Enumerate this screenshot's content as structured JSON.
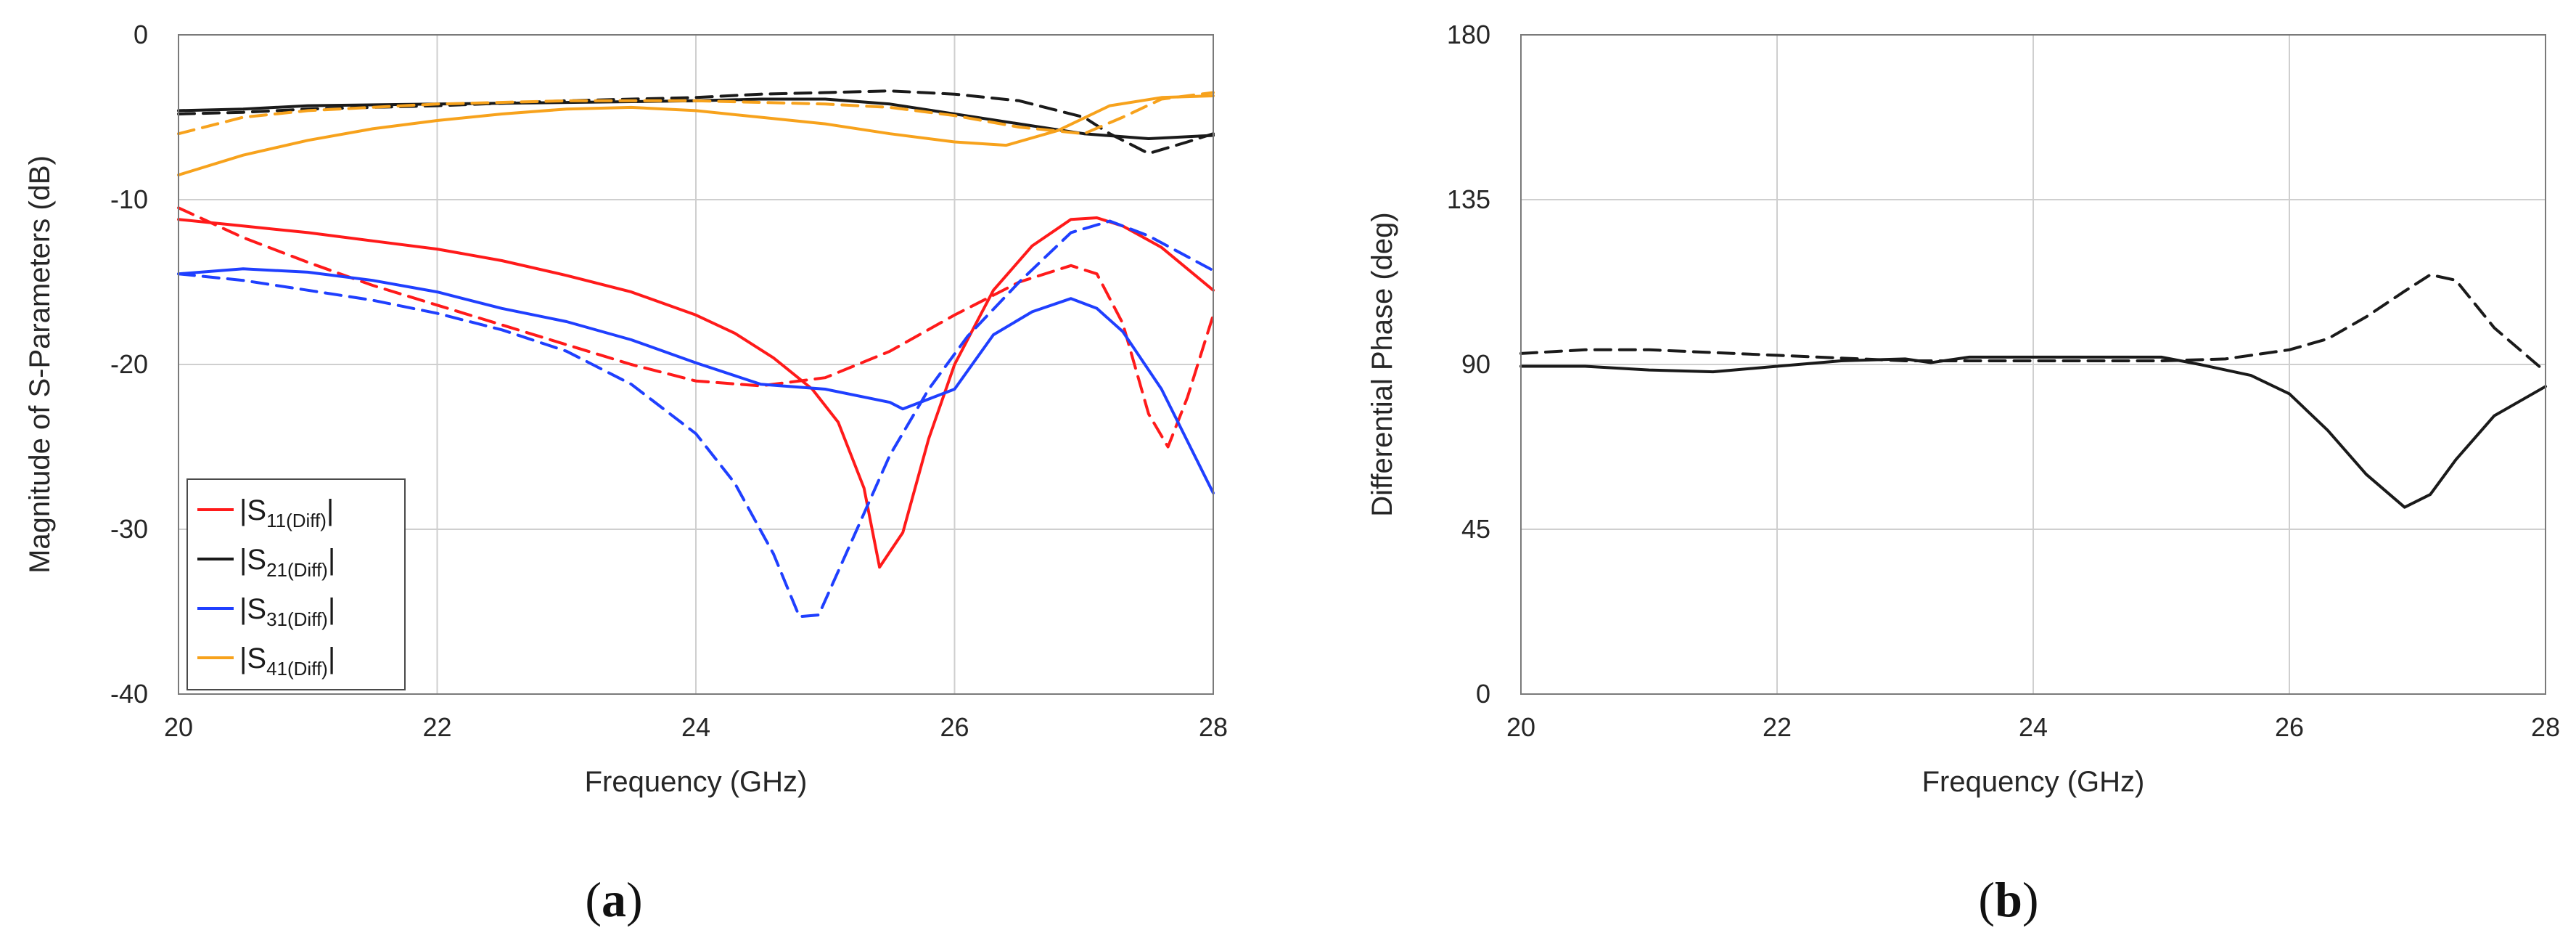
{
  "chart_data": [
    {
      "type": "line",
      "panel_label": "a",
      "xlabel": "Frequency (GHz)",
      "ylabel": "Magnitude of S-Parameters (dB)",
      "xlim": [
        20,
        28
      ],
      "ylim": [
        -40,
        0
      ],
      "xticks": [
        20,
        22,
        24,
        26,
        28
      ],
      "yticks": [
        -40,
        -30,
        -20,
        -10,
        0
      ],
      "grid": true,
      "legend_position": "bottom-left",
      "colors": {
        "red": "#ff1a1a",
        "black": "#1a1a1a",
        "blue": "#1f3fff",
        "orange": "#f7a21c"
      },
      "legend": [
        {
          "main": "S",
          "sub": "11(Diff)",
          "color": "#ff1a1a"
        },
        {
          "main": "S",
          "sub": "21(Diff)",
          "color": "#1a1a1a"
        },
        {
          "main": "S",
          "sub": "31(Diff)",
          "color": "#1f3fff"
        },
        {
          "main": "S",
          "sub": "41(Diff)",
          "color": "#f7a21c"
        }
      ],
      "series": [
        {
          "name": "|S11(Diff)| solid",
          "color": "#ff1a1a",
          "dash": false,
          "x": [
            20,
            20.5,
            21,
            21.5,
            22,
            22.5,
            23,
            23.5,
            24,
            24.3,
            24.6,
            24.9,
            25.1,
            25.3,
            25.42,
            25.6,
            25.8,
            26.0,
            26.3,
            26.6,
            26.9,
            27.1,
            27.3,
            27.6,
            28
          ],
          "y": [
            -11.2,
            -11.6,
            -12.0,
            -12.5,
            -13.0,
            -13.7,
            -14.6,
            -15.6,
            -17.0,
            -18.1,
            -19.6,
            -21.5,
            -23.5,
            -27.5,
            -32.3,
            -30.2,
            -24.5,
            -20.0,
            -15.5,
            -12.8,
            -11.2,
            -11.1,
            -11.6,
            -12.9,
            -15.5
          ]
        },
        {
          "name": "|S11(Diff)| dashed",
          "color": "#ff1a1a",
          "dash": true,
          "x": [
            20,
            20.5,
            21,
            21.5,
            22,
            22.5,
            23,
            23.5,
            24,
            24.5,
            25,
            25.5,
            26,
            26.5,
            26.9,
            27.1,
            27.3,
            27.5,
            27.65,
            27.8,
            28
          ],
          "y": [
            -10.5,
            -12.3,
            -13.8,
            -15.2,
            -16.4,
            -17.6,
            -18.8,
            -20.0,
            -21.0,
            -21.3,
            -20.8,
            -19.2,
            -17.0,
            -15.0,
            -14.0,
            -14.5,
            -17.5,
            -23.0,
            -25.0,
            -22.0,
            -17.0
          ]
        },
        {
          "name": "|S21(Diff)| solid",
          "color": "#1a1a1a",
          "dash": false,
          "x": [
            20,
            20.5,
            21,
            22,
            23,
            24,
            24.5,
            25,
            25.5,
            26,
            26.5,
            27,
            27.5,
            28
          ],
          "y": [
            -4.6,
            -4.5,
            -4.3,
            -4.2,
            -4.1,
            -4.0,
            -3.9,
            -3.9,
            -4.2,
            -4.8,
            -5.4,
            -6.0,
            -6.3,
            -6.1
          ]
        },
        {
          "name": "|S21(Diff)| dashed",
          "color": "#1a1a1a",
          "dash": true,
          "x": [
            20,
            20.5,
            21,
            22,
            23,
            24,
            24.5,
            25,
            25.5,
            26,
            26.5,
            27,
            27.2,
            27.5,
            27.8,
            28
          ],
          "y": [
            -4.8,
            -4.7,
            -4.5,
            -4.3,
            -4.0,
            -3.8,
            -3.6,
            -3.5,
            -3.4,
            -3.6,
            -4.0,
            -5.0,
            -6.0,
            -7.2,
            -6.5,
            -6.0
          ]
        },
        {
          "name": "|S31(Diff)| solid",
          "color": "#1f3fff",
          "dash": false,
          "x": [
            20,
            20.5,
            21,
            21.5,
            22,
            22.5,
            23,
            23.5,
            24,
            24.5,
            25,
            25.5,
            25.6,
            26.0,
            26.3,
            26.6,
            26.9,
            27.1,
            27.3,
            27.6,
            28
          ],
          "y": [
            -14.5,
            -14.2,
            -14.4,
            -14.9,
            -15.6,
            -16.6,
            -17.4,
            -18.5,
            -19.9,
            -21.2,
            -21.5,
            -22.3,
            -22.7,
            -21.5,
            -18.2,
            -16.8,
            -16.0,
            -16.6,
            -18.0,
            -21.5,
            -27.8
          ]
        },
        {
          "name": "|S31(Diff)| dashed",
          "color": "#1f3fff",
          "dash": true,
          "x": [
            20,
            20.5,
            21,
            21.5,
            22,
            22.5,
            23,
            23.5,
            24,
            24.3,
            24.6,
            24.8,
            24.95,
            25.2,
            25.5,
            25.8,
            26.1,
            26.5,
            26.9,
            27.2,
            27.5,
            28
          ],
          "y": [
            -14.5,
            -14.9,
            -15.5,
            -16.1,
            -16.9,
            -17.9,
            -19.2,
            -21.2,
            -24.2,
            -27.2,
            -31.5,
            -35.3,
            -35.2,
            -30.8,
            -25.5,
            -21.5,
            -18.3,
            -15.0,
            -12.0,
            -11.3,
            -12.2,
            -14.3
          ]
        },
        {
          "name": "|S41(Diff)| solid",
          "color": "#f7a21c",
          "dash": false,
          "x": [
            20,
            20.5,
            21,
            21.5,
            22,
            22.5,
            23,
            23.5,
            24,
            24.5,
            25,
            25.5,
            26,
            26.4,
            26.8,
            27.2,
            27.6,
            28
          ],
          "y": [
            -8.5,
            -7.3,
            -6.4,
            -5.7,
            -5.2,
            -4.8,
            -4.5,
            -4.4,
            -4.6,
            -5.0,
            -5.4,
            -6.0,
            -6.5,
            -6.7,
            -5.8,
            -4.3,
            -3.8,
            -3.7
          ]
        },
        {
          "name": "|S41(Diff)| dashed",
          "color": "#f7a21c",
          "dash": true,
          "x": [
            20,
            20.5,
            21,
            22,
            23,
            24,
            25,
            25.5,
            26,
            26.5,
            27,
            27.3,
            27.6,
            28
          ],
          "y": [
            -6.0,
            -5.0,
            -4.6,
            -4.2,
            -4.0,
            -4.0,
            -4.2,
            -4.4,
            -4.9,
            -5.6,
            -6.0,
            -5.0,
            -3.9,
            -3.5
          ]
        }
      ]
    },
    {
      "type": "line",
      "panel_label": "b",
      "xlabel": "Frequency (GHz)",
      "ylabel": "Differential Phase (deg)",
      "xlim": [
        20,
        28
      ],
      "ylim": [
        0,
        180
      ],
      "xticks": [
        20,
        22,
        24,
        26,
        28
      ],
      "yticks": [
        0,
        45,
        90,
        135,
        180
      ],
      "grid": true,
      "series": [
        {
          "name": "phase solid",
          "color": "#1a1a1a",
          "dash": false,
          "x": [
            20,
            20.5,
            21,
            21.5,
            22,
            22.5,
            23,
            23.2,
            23.5,
            24,
            24.5,
            25,
            25.3,
            25.7,
            26.0,
            26.3,
            26.6,
            26.9,
            27.1,
            27.3,
            27.6,
            28
          ],
          "y": [
            89.5,
            89.5,
            88.5,
            88.0,
            89.5,
            91.0,
            91.5,
            90.5,
            92.0,
            92.0,
            92.0,
            92.0,
            90.0,
            87.0,
            82.0,
            72.0,
            60.0,
            51.0,
            54.5,
            64.0,
            76.0,
            84.0
          ]
        },
        {
          "name": "phase dashed",
          "color": "#1a1a1a",
          "dash": true,
          "x": [
            20,
            20.5,
            21,
            22,
            23,
            24,
            25,
            25.5,
            26,
            26.3,
            26.6,
            26.9,
            27.1,
            27.3,
            27.6,
            28
          ],
          "y": [
            93.0,
            94.0,
            94.0,
            92.5,
            91.0,
            91.0,
            91.0,
            91.5,
            94.0,
            97.0,
            103.0,
            110.0,
            114.5,
            113.0,
            100.0,
            88.0
          ]
        }
      ]
    }
  ]
}
